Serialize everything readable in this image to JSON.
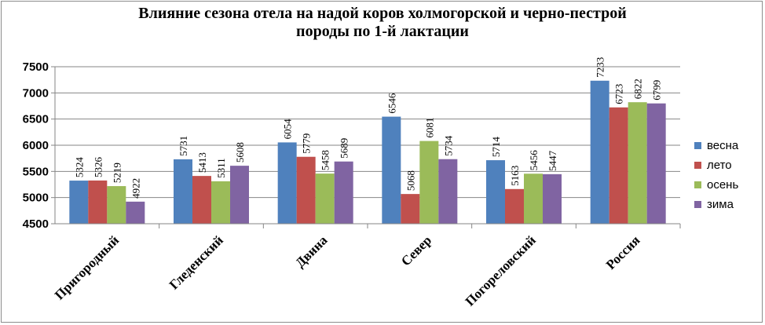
{
  "chart_data": {
    "type": "bar",
    "title_lines": [
      "Влияние сезона отела на надой коров холмогорской и черно-пестрой",
      "породы по 1-й лактации"
    ],
    "xlabel": "",
    "ylabel": "",
    "categories": [
      "Пригородный",
      "Гледенский",
      "Двина",
      "Север",
      "Погореловский",
      "Россия"
    ],
    "series": [
      {
        "name": "весна",
        "color": "#4f81bd",
        "values": [
          5324,
          5731,
          6054,
          6546,
          5714,
          7233
        ]
      },
      {
        "name": "лето",
        "color": "#c0504d",
        "values": [
          5326,
          5413,
          5779,
          5068,
          5163,
          6723
        ]
      },
      {
        "name": "осень",
        "color": "#9bbb59",
        "values": [
          5219,
          5311,
          5458,
          6081,
          5456,
          6822
        ]
      },
      {
        "name": "зима",
        "color": "#8064a2",
        "values": [
          4922,
          5608,
          5689,
          5734,
          5447,
          6799
        ]
      }
    ],
    "ylim": [
      4500,
      7500
    ],
    "yticks": [
      4500,
      5000,
      5500,
      6000,
      6500,
      7000,
      7500
    ],
    "grid": true,
    "legend_position": "right"
  }
}
